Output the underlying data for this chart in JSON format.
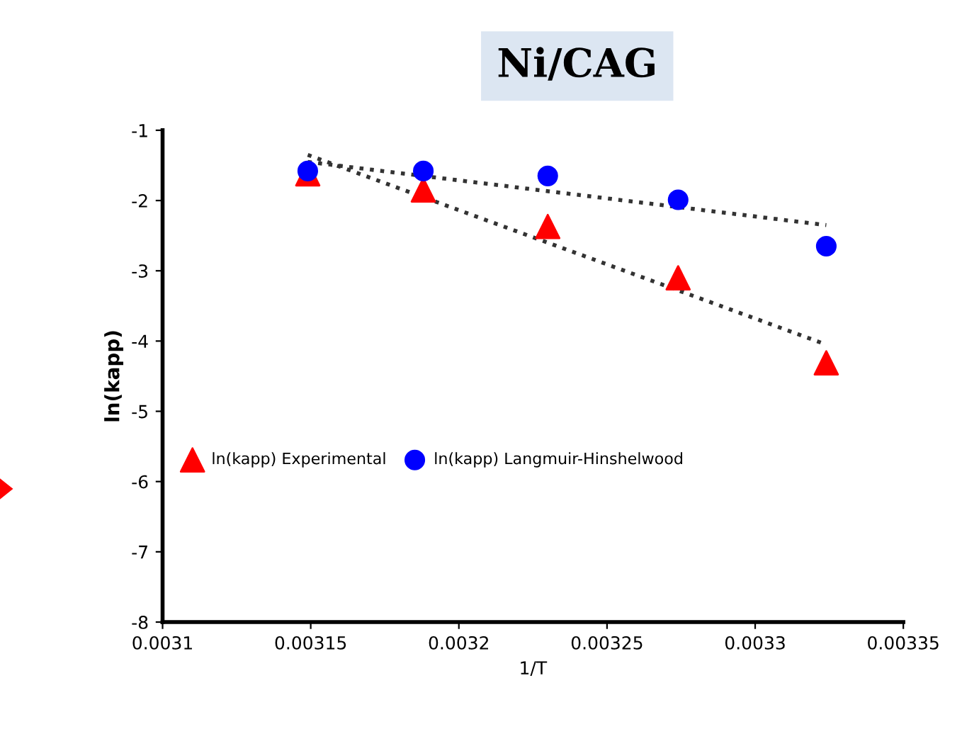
{
  "chart_data": {
    "type": "scatter",
    "title": "Ni/CAG",
    "xlabel": "1/T",
    "ylabel": "ln(kapp)",
    "xlim": [
      0.0031,
      0.00335
    ],
    "xticks": [
      0.0031,
      0.00315,
      0.0032,
      0.00325,
      0.0033,
      0.00335
    ],
    "ylim": [
      -8,
      -1
    ],
    "yticks": [
      -1,
      -2,
      -3,
      -4,
      -5,
      -6,
      -7,
      -8
    ],
    "legend": "left",
    "series": [
      {
        "name": "ln(kapp) Experimental",
        "color": "#ff0000",
        "marker": "triangle",
        "x": [
          0.003149,
          0.003188,
          0.00323,
          0.003274,
          0.003324
        ],
        "values": [
          -1.62,
          -1.85,
          -2.37,
          -3.1,
          -4.31
        ]
      },
      {
        "name": "ln(kapp) Langmuir-Hinshelwood",
        "color": "#0000ff",
        "marker": "circle",
        "x": [
          0.003149,
          0.003188,
          0.00323,
          0.003274,
          0.003324
        ],
        "values": [
          -1.58,
          -1.58,
          -1.65,
          -1.99,
          -2.65
        ]
      },
      {
        "type": "line",
        "color": "#333333",
        "line_style": "dotted",
        "x": [
          0.003149,
          0.003324
        ],
        "values": [
          -1.35,
          -4.05
        ]
      },
      {
        "type": "line",
        "color": "#333333",
        "line_style": "dotted",
        "x": [
          0.003149,
          0.003324
        ],
        "values": [
          -1.45,
          -2.35
        ]
      }
    ]
  }
}
